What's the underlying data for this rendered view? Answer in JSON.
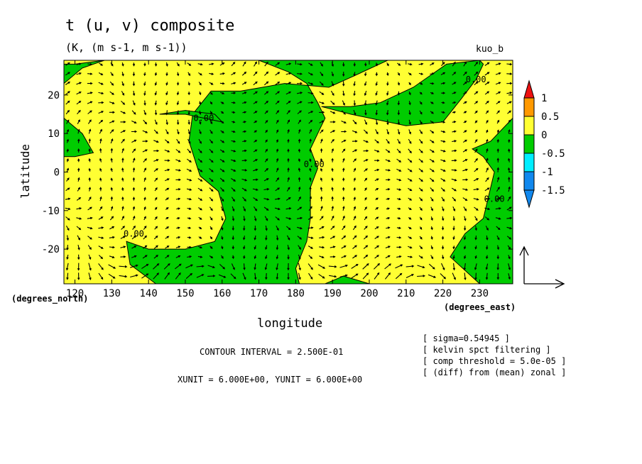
{
  "title": "t (u, v) composite",
  "subtitle": "(K, (m s-1, m s-1))",
  "tag": "kuo_b",
  "x_unit_label": "(degrees_east)",
  "y_unit_label": "(degrees_north)",
  "contour_interval": "CONTOUR INTERVAL = 2.500E-01",
  "vector_units": "XUNIT = 6.000E+00, YUNIT = 6.000E+00",
  "notes": [
    "[ sigma=0.54945 ]",
    "[ kelvin spct filtering ]",
    "[ comp threshold = 5.0e-05 ]",
    "[ (diff) from (mean) zonal ]"
  ],
  "colors": {
    "green": "#00cc00",
    "yellow": "#ffff33",
    "orange": "#ff9900",
    "red": "#ee1111",
    "cyan": "#00eeff",
    "blue": "#1188ee"
  },
  "chart_data": {
    "type": "heatmap",
    "title": "t (u, v) composite",
    "xlabel": "longitude",
    "ylabel": "latitude",
    "xlim": [
      117,
      239
    ],
    "ylim": [
      -29,
      29
    ],
    "x_ticks": [
      120,
      130,
      140,
      150,
      160,
      170,
      180,
      190,
      200,
      210,
      220,
      230
    ],
    "y_ticks": [
      -20,
      -10,
      0,
      10,
      20
    ],
    "colorbar": {
      "levels": [
        1,
        0.5,
        0,
        -0.5,
        -1,
        -1.5
      ],
      "bins": [
        {
          "range": [
            0.5,
            1
          ],
          "color": "#ff9900"
        },
        {
          "range": [
            0,
            0.5
          ],
          "color": "#ffff33"
        },
        {
          "range": [
            -0.5,
            0
          ],
          "color": "#00cc00"
        },
        {
          "range": [
            -1,
            -0.5
          ],
          "color": "#00eeff"
        },
        {
          "range": [
            -1.5,
            -1
          ],
          "color": "#1188ee"
        }
      ]
    },
    "contour_labels": [
      {
        "text": "0.00",
        "lon": 155,
        "lat": 14
      },
      {
        "text": "0.00",
        "lon": 185,
        "lat": 2
      },
      {
        "text": "0.00",
        "lon": 136,
        "lat": -16
      },
      {
        "text": "0.00",
        "lon": 229,
        "lat": 24
      },
      {
        "text": "0.00",
        "lon": 234,
        "lat": -7
      }
    ],
    "negative_regions_lonlat": [
      [
        [
          170,
          29
        ],
        [
          205,
          29
        ],
        [
          196,
          25
        ],
        [
          189,
          22
        ],
        [
          177,
          23
        ],
        [
          165,
          21
        ],
        [
          157,
          21
        ],
        [
          152,
          15
        ],
        [
          151,
          8
        ],
        [
          154,
          -1
        ],
        [
          159,
          -5
        ],
        [
          161,
          -12
        ],
        [
          158,
          -18
        ],
        [
          150,
          -20
        ],
        [
          140,
          -20
        ],
        [
          134,
          -18
        ],
        [
          135,
          -24
        ],
        [
          142,
          -29
        ],
        [
          170,
          -29
        ],
        [
          181,
          -29
        ],
        [
          180,
          -25
        ],
        [
          183,
          -18
        ],
        [
          184,
          -12
        ],
        [
          184,
          -4
        ],
        [
          186,
          1
        ],
        [
          184,
          6
        ],
        [
          186,
          10
        ],
        [
          188,
          14
        ],
        [
          186,
          18
        ],
        [
          183,
          23
        ],
        [
          178,
          26
        ]
      ],
      [
        [
          117,
          28
        ],
        [
          120,
          28
        ],
        [
          128,
          29
        ],
        [
          122,
          27
        ],
        [
          117,
          23
        ]
      ],
      [
        [
          117,
          14
        ],
        [
          122,
          10
        ],
        [
          125,
          5
        ],
        [
          120,
          4
        ],
        [
          117,
          4
        ]
      ],
      [
        [
          143,
          15
        ],
        [
          150,
          15
        ],
        [
          160,
          13
        ],
        [
          158,
          15
        ],
        [
          150,
          16
        ]
      ],
      [
        [
          187,
          17
        ],
        [
          195,
          15
        ],
        [
          210,
          12
        ],
        [
          220,
          13
        ],
        [
          225,
          19
        ],
        [
          229,
          24
        ],
        [
          231,
          28
        ],
        [
          230,
          29
        ],
        [
          221,
          28
        ],
        [
          212,
          22
        ],
        [
          203,
          18
        ],
        [
          195,
          17
        ]
      ],
      [
        [
          228,
          6
        ],
        [
          233,
          8
        ],
        [
          239,
          14
        ],
        [
          239,
          -29
        ],
        [
          230,
          -29
        ],
        [
          222,
          -22
        ],
        [
          226,
          -16
        ],
        [
          231,
          -12
        ],
        [
          233,
          -4
        ],
        [
          234,
          0
        ],
        [
          231,
          4
        ]
      ],
      [
        [
          188,
          -29
        ],
        [
          193,
          -27
        ],
        [
          200,
          -29
        ]
      ]
    ]
  }
}
